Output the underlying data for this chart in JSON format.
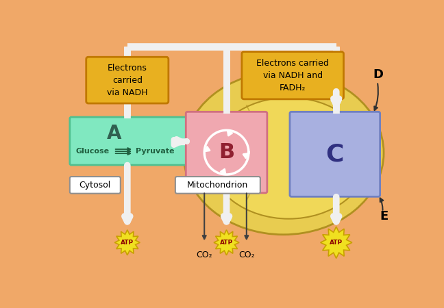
{
  "bg_color": "#f0a868",
  "mito_outer_color": "#e8cc50",
  "mito_inner_color": "#f0d858",
  "box_A_color": "#80e8c0",
  "box_B_color": "#f0a8b0",
  "box_C_color": "#a8b0e0",
  "nadh_box_color": "#e8b020",
  "cytosol_box_color": "#ffffff",
  "mito_label_box_color": "#ffffff",
  "atp_color": "#f0e020",
  "atp_border_color": "#c8a000",
  "atp_text_color": "#8b0000",
  "white_arrow_color": "#f0f0f0",
  "dark_arrow_color": "#404040",
  "label_D": "D",
  "label_E": "E",
  "nadh_top_text": "Electrons\ncarried\nvia NADH",
  "nadh_mid_text": "Electrons carried\nvia NADH and\nFADH₂",
  "glucose_text": "Glucose",
  "pyruvate_text": "Pyruvate",
  "cytosol_text": "Cytosol",
  "mito_text": "Mitochondrion",
  "atp_text": "ATP",
  "co2_text": "CO₂",
  "box_A_label": "A",
  "box_B_label": "B",
  "box_C_label": "C"
}
